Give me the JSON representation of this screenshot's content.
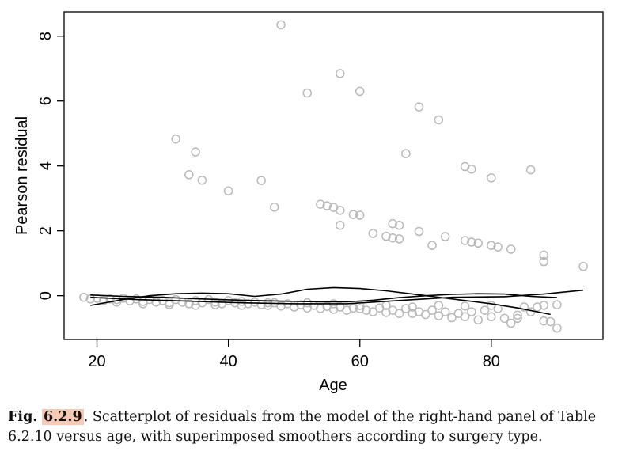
{
  "chart_data": {
    "type": "scatter",
    "xlabel": "Age",
    "ylabel": "Pearson residual",
    "xlim": [
      15,
      97
    ],
    "ylim": [
      -1.35,
      8.75
    ],
    "xticks": [
      "20",
      "40",
      "60",
      "80"
    ],
    "yticks": [
      "0",
      "2",
      "4",
      "6",
      "8"
    ],
    "grid": false,
    "marker_color": "#b9b9b9",
    "line_color": "#000000",
    "points": [
      {
        "x": 18,
        "y": -0.05
      },
      {
        "x": 19,
        "y": -0.1
      },
      {
        "x": 20,
        "y": -0.08
      },
      {
        "x": 21,
        "y": -0.15
      },
      {
        "x": 22,
        "y": -0.1
      },
      {
        "x": 23,
        "y": -0.12
      },
      {
        "x": 24,
        "y": -0.08
      },
      {
        "x": 25,
        "y": -0.16
      },
      {
        "x": 26,
        "y": -0.1
      },
      {
        "x": 27,
        "y": -0.18
      },
      {
        "x": 28,
        "y": -0.12
      },
      {
        "x": 29,
        "y": -0.2
      },
      {
        "x": 30,
        "y": -0.15
      },
      {
        "x": 31,
        "y": -0.22
      },
      {
        "x": 32,
        "y": -0.12
      },
      {
        "x": 33,
        "y": -0.2
      },
      {
        "x": 34,
        "y": -0.25
      },
      {
        "x": 35,
        "y": -0.15
      },
      {
        "x": 36,
        "y": -0.22
      },
      {
        "x": 37,
        "y": -0.12
      },
      {
        "x": 38,
        "y": -0.2
      },
      {
        "x": 39,
        "y": -0.25
      },
      {
        "x": 40,
        "y": -0.15
      },
      {
        "x": 41,
        "y": -0.22
      },
      {
        "x": 42,
        "y": -0.18
      },
      {
        "x": 43,
        "y": -0.25
      },
      {
        "x": 44,
        "y": -0.2
      },
      {
        "x": 45,
        "y": -0.28
      },
      {
        "x": 46,
        "y": -0.3
      },
      {
        "x": 47,
        "y": -0.22
      },
      {
        "x": 48,
        "y": -0.32
      },
      {
        "x": 49,
        "y": -0.25
      },
      {
        "x": 50,
        "y": -0.35
      },
      {
        "x": 51,
        "y": -0.28
      },
      {
        "x": 52,
        "y": -0.38
      },
      {
        "x": 53,
        "y": -0.3
      },
      {
        "x": 54,
        "y": -0.4
      },
      {
        "x": 55,
        "y": -0.33
      },
      {
        "x": 56,
        "y": -0.42
      },
      {
        "x": 57,
        "y": -0.35
      },
      {
        "x": 58,
        "y": -0.45
      },
      {
        "x": 59,
        "y": -0.38
      },
      {
        "x": 60,
        "y": -0.3
      },
      {
        "x": 61,
        "y": -0.45
      },
      {
        "x": 62,
        "y": -0.5
      },
      {
        "x": 63,
        "y": -0.38
      },
      {
        "x": 64,
        "y": -0.52
      },
      {
        "x": 65,
        "y": -0.45
      },
      {
        "x": 66,
        "y": -0.55
      },
      {
        "x": 67,
        "y": -0.4
      },
      {
        "x": 68,
        "y": -0.55
      },
      {
        "x": 69,
        "y": -0.5
      },
      {
        "x": 70,
        "y": -0.58
      },
      {
        "x": 71,
        "y": -0.45
      },
      {
        "x": 72,
        "y": -0.62
      },
      {
        "x": 73,
        "y": -0.5
      },
      {
        "x": 74,
        "y": -0.68
      },
      {
        "x": 75,
        "y": -0.55
      },
      {
        "x": 76,
        "y": -0.65
      },
      {
        "x": 77,
        "y": -0.5
      },
      {
        "x": 78,
        "y": -0.75
      },
      {
        "x": 79,
        "y": -0.45
      },
      {
        "x": 80,
        "y": -0.65
      },
      {
        "x": 81,
        "y": -0.4
      },
      {
        "x": 82,
        "y": -0.7
      },
      {
        "x": 83,
        "y": -0.85
      },
      {
        "x": 84,
        "y": -0.7
      },
      {
        "x": 85,
        "y": -0.35
      },
      {
        "x": 86,
        "y": -0.5
      },
      {
        "x": 87,
        "y": -0.35
      },
      {
        "x": 88,
        "y": -0.78
      },
      {
        "x": 89,
        "y": -0.8
      },
      {
        "x": 90,
        "y": -1.0
      },
      {
        "x": 90,
        "y": -0.28
      },
      {
        "x": 23,
        "y": -0.2
      },
      {
        "x": 27,
        "y": -0.25
      },
      {
        "x": 31,
        "y": -0.28
      },
      {
        "x": 35,
        "y": -0.3
      },
      {
        "x": 38,
        "y": -0.28
      },
      {
        "x": 42,
        "y": -0.3
      },
      {
        "x": 46,
        "y": -0.22
      },
      {
        "x": 52,
        "y": -0.22
      },
      {
        "x": 56,
        "y": -0.25
      },
      {
        "x": 60,
        "y": -0.4
      },
      {
        "x": 64,
        "y": -0.3
      },
      {
        "x": 68,
        "y": -0.35
      },
      {
        "x": 72,
        "y": -0.3
      },
      {
        "x": 76,
        "y": -0.32
      },
      {
        "x": 80,
        "y": -0.3
      },
      {
        "x": 84,
        "y": -0.6
      },
      {
        "x": 88,
        "y": -0.3
      },
      {
        "x": 48,
        "y": 8.35
      },
      {
        "x": 57,
        "y": 6.85
      },
      {
        "x": 52,
        "y": 6.25
      },
      {
        "x": 60,
        "y": 6.3
      },
      {
        "x": 69,
        "y": 5.82
      },
      {
        "x": 72,
        "y": 5.42
      },
      {
        "x": 32,
        "y": 4.83
      },
      {
        "x": 35,
        "y": 4.43
      },
      {
        "x": 67,
        "y": 4.38
      },
      {
        "x": 76,
        "y": 3.98
      },
      {
        "x": 77,
        "y": 3.9
      },
      {
        "x": 86,
        "y": 3.88
      },
      {
        "x": 34,
        "y": 3.73
      },
      {
        "x": 80,
        "y": 3.63
      },
      {
        "x": 36,
        "y": 3.56
      },
      {
        "x": 45,
        "y": 3.55
      },
      {
        "x": 40,
        "y": 3.23
      },
      {
        "x": 54,
        "y": 2.82
      },
      {
        "x": 55,
        "y": 2.77
      },
      {
        "x": 56,
        "y": 2.72
      },
      {
        "x": 47,
        "y": 2.73
      },
      {
        "x": 57,
        "y": 2.63
      },
      {
        "x": 59,
        "y": 2.5
      },
      {
        "x": 60,
        "y": 2.48
      },
      {
        "x": 65,
        "y": 2.22
      },
      {
        "x": 66,
        "y": 2.17
      },
      {
        "x": 57,
        "y": 2.17
      },
      {
        "x": 69,
        "y": 1.98
      },
      {
        "x": 62,
        "y": 1.92
      },
      {
        "x": 64,
        "y": 1.83
      },
      {
        "x": 73,
        "y": 1.82
      },
      {
        "x": 65,
        "y": 1.78
      },
      {
        "x": 66,
        "y": 1.75
      },
      {
        "x": 76,
        "y": 1.7
      },
      {
        "x": 77,
        "y": 1.65
      },
      {
        "x": 78,
        "y": 1.62
      },
      {
        "x": 71,
        "y": 1.55
      },
      {
        "x": 80,
        "y": 1.55
      },
      {
        "x": 81,
        "y": 1.5
      },
      {
        "x": 83,
        "y": 1.43
      },
      {
        "x": 88,
        "y": 1.25
      },
      {
        "x": 88,
        "y": 1.05
      },
      {
        "x": 94,
        "y": 0.9
      }
    ],
    "lines": [
      {
        "points": [
          [
            19,
            0.02
          ],
          [
            24,
            -0.02
          ],
          [
            30,
            -0.05
          ],
          [
            36,
            -0.1
          ],
          [
            42,
            -0.14
          ],
          [
            48,
            -0.17
          ],
          [
            54,
            -0.19
          ],
          [
            58,
            -0.19
          ],
          [
            62,
            -0.14
          ],
          [
            66,
            -0.06
          ],
          [
            70,
            0.0
          ],
          [
            74,
            0.04
          ],
          [
            78,
            0.06
          ],
          [
            82,
            0.05
          ],
          [
            86,
            -0.02
          ],
          [
            90,
            -0.06
          ]
        ]
      },
      {
        "points": [
          [
            19,
            -0.3
          ],
          [
            24,
            -0.12
          ],
          [
            28,
            0.0
          ],
          [
            32,
            0.06
          ],
          [
            36,
            0.08
          ],
          [
            40,
            0.06
          ],
          [
            44,
            -0.02
          ],
          [
            48,
            0.05
          ],
          [
            52,
            0.2
          ],
          [
            56,
            0.25
          ],
          [
            60,
            0.22
          ],
          [
            64,
            0.15
          ],
          [
            68,
            0.05
          ],
          [
            72,
            -0.05
          ],
          [
            76,
            -0.15
          ],
          [
            80,
            -0.25
          ],
          [
            84,
            -0.38
          ],
          [
            89,
            -0.58
          ]
        ]
      },
      {
        "points": [
          [
            19,
            -0.05
          ],
          [
            26,
            -0.12
          ],
          [
            34,
            -0.17
          ],
          [
            42,
            -0.22
          ],
          [
            50,
            -0.25
          ],
          [
            58,
            -0.25
          ],
          [
            66,
            -0.15
          ],
          [
            74,
            -0.05
          ],
          [
            82,
            -0.03
          ],
          [
            88,
            0.05
          ],
          [
            94,
            0.17
          ]
        ]
      }
    ]
  },
  "caption": {
    "label": "Fig.",
    "number": "6.2.9",
    "text": ". Scatterplot of residuals from the model of the right-hand panel of Table 6.2.10 versus age, with superimposed smoothers according to surgery type."
  }
}
